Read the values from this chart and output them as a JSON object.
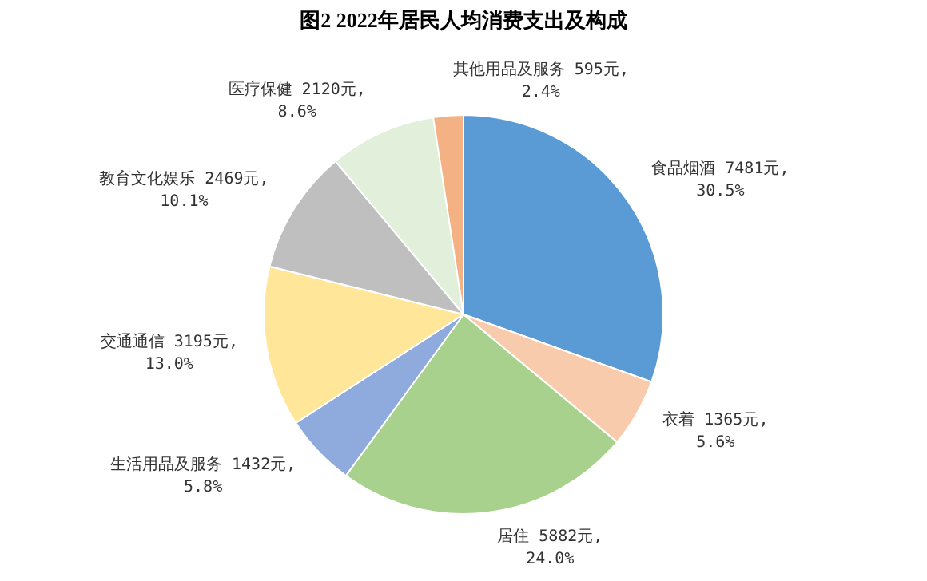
{
  "chart_data": {
    "type": "pie",
    "title": "图2    2022年居民人均消费支出及构成",
    "categories": [
      "食品烟酒",
      "衣着",
      "居住",
      "生活用品及服务",
      "交通通信",
      "教育文化娱乐",
      "医疗保健",
      "其他用品及服务"
    ],
    "values": [
      7481,
      1365,
      5882,
      1432,
      3195,
      2469,
      2120,
      595
    ],
    "colors": [
      "#5b9bd5",
      "#f8cbad",
      "#a9d18e",
      "#8faadc",
      "#ffe699",
      "#bfbfbf",
      "#e2efda",
      "#f4b183"
    ],
    "value_labels": [
      "7481元,\n30.5%",
      "1365元,\n5.6%",
      "5882元,\n24.0%",
      "1432元,\n5.8%",
      "3195元,\n13.0%",
      "2469元,\n10.1%",
      "2120元,\n8.6%",
      "595元,\n2.4%"
    ]
  }
}
